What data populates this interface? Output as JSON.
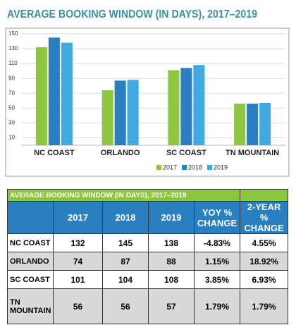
{
  "chart_data": {
    "type": "bar",
    "title": "AVERAGE BOOKING WINDOW (IN DAYS), 2017–2019",
    "categories": [
      "NC COAST",
      "ORLANDO",
      "SC COAST",
      "TN MOUNTAIN"
    ],
    "series": [
      {
        "name": "2017",
        "color": "#8dc63f",
        "values": [
          132,
          74,
          101,
          56
        ]
      },
      {
        "name": "2018",
        "color": "#2a7fc1",
        "values": [
          145,
          87,
          104,
          56
        ]
      },
      {
        "name": "2019",
        "color": "#3fa9e0",
        "values": [
          138,
          88,
          108,
          57
        ]
      }
    ],
    "ylim": [
      0,
      150
    ],
    "yticks": [
      10,
      30,
      50,
      70,
      90,
      110,
      130,
      150
    ],
    "grid": true,
    "legend": "bottom"
  },
  "table": {
    "title": "AVERAGE BOOKING WINDOW (IN DAYS), 2017–2019",
    "header": [
      "2017",
      "2018",
      "2019",
      "YOY % CHANGE",
      "2-YEAR % CHANGE"
    ],
    "rows": [
      [
        "NC COAST",
        "132",
        "145",
        "138",
        "-4.83%",
        "4.55%"
      ],
      [
        "ORLANDO",
        "74",
        "87",
        "88",
        "1.15%",
        "18.92%"
      ],
      [
        "SC COAST",
        "101",
        "104",
        "108",
        "3.85%",
        "6.93%"
      ],
      [
        "TN MOUNTAIN",
        "56",
        "56",
        "57",
        "1.79%",
        "1.79%"
      ]
    ]
  }
}
